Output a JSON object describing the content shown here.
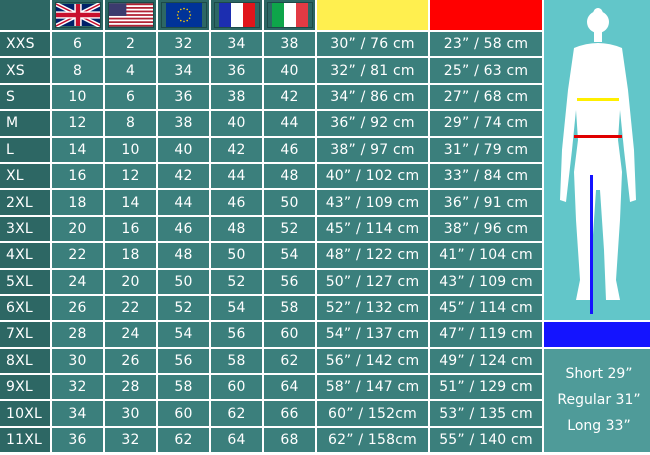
{
  "header": {
    "flags": [
      {
        "name": "uk-flag"
      },
      {
        "name": "us-flag"
      },
      {
        "name": "eu-flag"
      },
      {
        "name": "france-flag"
      },
      {
        "name": "italy-flag"
      }
    ],
    "waist_color": "#ffef4f",
    "hip_color": "#ff0000"
  },
  "rows": [
    [
      "XXS",
      "6",
      "2",
      "32",
      "34",
      "38",
      "30” / 76 cm",
      "23” / 58 cm"
    ],
    [
      "XS",
      "8",
      "4",
      "34",
      "36",
      "40",
      "32” / 81 cm",
      "25” / 63 cm"
    ],
    [
      "S",
      "10",
      "6",
      "36",
      "38",
      "42",
      "34” / 86 cm",
      "27” / 68 cm"
    ],
    [
      "M",
      "12",
      "8",
      "38",
      "40",
      "44",
      "36” / 92 cm",
      "29” / 74 cm"
    ],
    [
      "L",
      "14",
      "10",
      "40",
      "42",
      "46",
      "38” / 97 cm",
      "31” / 79 cm"
    ],
    [
      "XL",
      "16",
      "12",
      "42",
      "44",
      "48",
      "40” / 102 cm",
      "33” / 84 cm"
    ],
    [
      "2XL",
      "18",
      "14",
      "44",
      "46",
      "50",
      "43” / 109 cm",
      "36” / 91 cm"
    ],
    [
      "3XL",
      "20",
      "16",
      "46",
      "48",
      "52",
      "45” / 114 cm",
      "38” / 96 cm"
    ],
    [
      "4XL",
      "22",
      "18",
      "48",
      "50",
      "54",
      "48” / 122 cm",
      "41” / 104 cm"
    ],
    [
      "5XL",
      "24",
      "20",
      "50",
      "52",
      "56",
      "50” / 127 cm",
      "43” / 109 cm"
    ],
    [
      "6XL",
      "26",
      "22",
      "52",
      "54",
      "58",
      "52” / 132 cm",
      "45” / 114 cm"
    ],
    [
      "7XL",
      "28",
      "24",
      "54",
      "56",
      "60",
      "54” / 137 cm",
      "47” / 119 cm"
    ],
    [
      "8XL",
      "30",
      "26",
      "56",
      "58",
      "62",
      "56” / 142 cm",
      "49” / 124 cm"
    ],
    [
      "9XL",
      "32",
      "28",
      "58",
      "60",
      "64",
      "58” / 147 cm",
      "51” / 129 cm"
    ],
    [
      "10XL",
      "34",
      "30",
      "60",
      "62",
      "66",
      "60” / 152cm",
      "53” / 135 cm"
    ],
    [
      "11XL",
      "36",
      "32",
      "62",
      "64",
      "68",
      "62” / 158cm",
      "55” / 140 cm"
    ]
  ],
  "inseam": {
    "color": "#1414ff",
    "lines": [
      "Short 29”",
      "Regular 31”",
      "Long 33”"
    ]
  }
}
